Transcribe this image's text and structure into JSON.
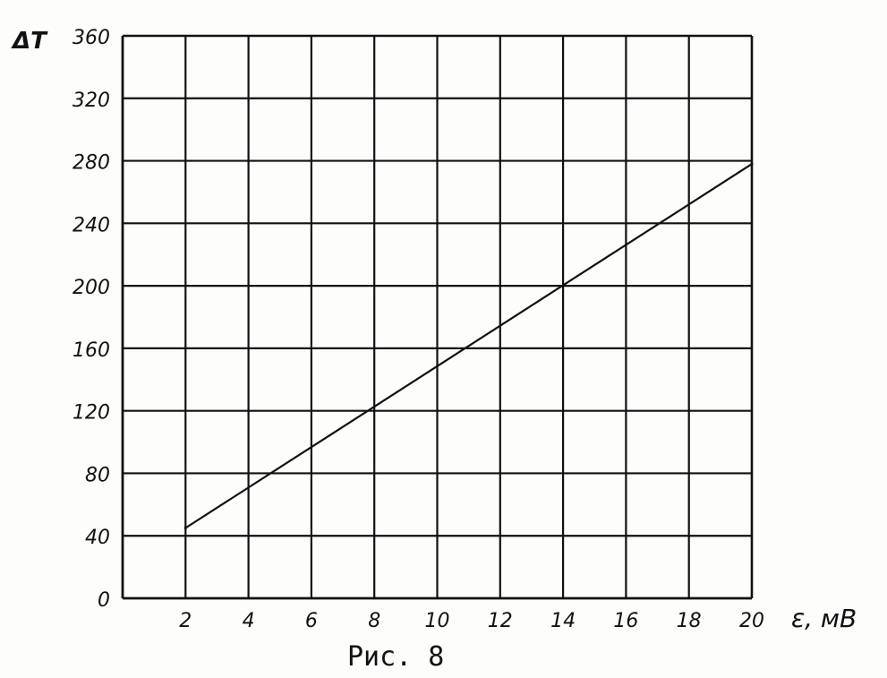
{
  "chart_data": {
    "type": "line",
    "xlabel": "ε, мВ",
    "ylabel": "ΔT",
    "xlim": [
      0,
      20
    ],
    "ylim": [
      0,
      360
    ],
    "x_ticks": [
      2,
      4,
      6,
      8,
      10,
      12,
      14,
      16,
      18,
      20
    ],
    "y_ticks": [
      0,
      40,
      80,
      120,
      160,
      200,
      240,
      280,
      320,
      360
    ],
    "grid": true,
    "legend": "none",
    "series": [
      {
        "x": [
          2,
          20
        ],
        "y": [
          45,
          278
        ]
      }
    ],
    "caption": "Рис. 8",
    "line_color": "#111111"
  }
}
